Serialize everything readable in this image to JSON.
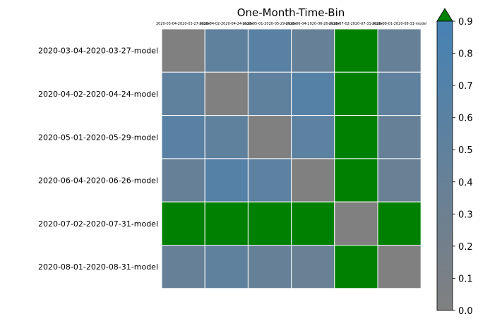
{
  "chart_data": {
    "type": "heatmap",
    "title": "One-Month-Time-Bin",
    "xlabel": "",
    "ylabel": "",
    "x_categories": [
      "2020-03-04-2020-03-27-model",
      "2020-04-02-2020-04-24-model",
      "2020-05-01-2020-05-29-model",
      "2020-06-04-2020-06-26-model",
      "2020-07-02-2020-07-31-model",
      "2020-08-01-2020-08-31-model"
    ],
    "y_categories": [
      "2020-03-04-2020-03-27-model",
      "2020-04-02-2020-04-24-model",
      "2020-05-01-2020-05-29-model",
      "2020-06-04-2020-06-26-model",
      "2020-07-02-2020-07-31-model",
      "2020-08-01-2020-08-31-model"
    ],
    "values": [
      [
        0.0,
        0.5,
        0.6,
        0.4,
        ">0.9",
        0.4
      ],
      [
        0.5,
        0.0,
        0.5,
        0.65,
        ">0.9",
        0.5
      ],
      [
        0.6,
        0.5,
        0.0,
        0.55,
        ">0.9",
        0.4
      ],
      [
        0.4,
        0.65,
        0.55,
        0.0,
        ">0.9",
        0.35
      ],
      [
        ">0.9",
        ">0.9",
        ">0.9",
        ">0.9",
        0.0,
        ">0.9"
      ],
      [
        0.4,
        0.5,
        0.4,
        0.35,
        ">0.9",
        0.0
      ]
    ],
    "colorbar": {
      "min": 0.0,
      "max": 0.9,
      "ticks": [
        "0.0",
        "0.1",
        "0.2",
        "0.3",
        "0.4",
        "0.5",
        "0.6",
        "0.7",
        "0.8",
        "0.9"
      ],
      "low_color": "#808080",
      "high_color": "#4682b4",
      "over_color": "#008000",
      "extend": "max"
    },
    "grid": true,
    "cell_border_color": "#ffffff"
  }
}
